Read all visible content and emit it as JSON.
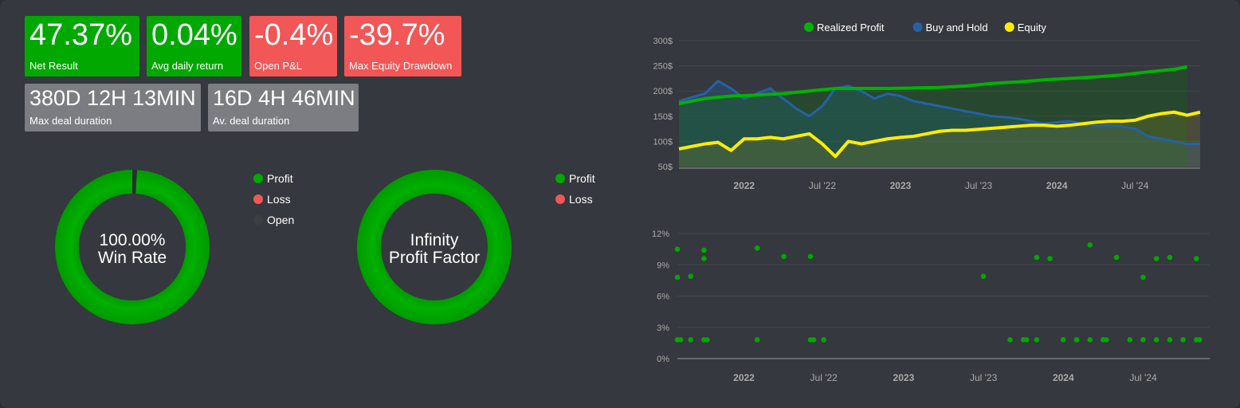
{
  "metrics": {
    "net_result": {
      "value": "47.37%",
      "label": "Net Result"
    },
    "avg_daily_return": {
      "value": "0.04%",
      "label": "Avg daily return"
    },
    "open_pnl": {
      "value": "-0.4%",
      "label": "Open P&L"
    },
    "max_drawdown": {
      "value": "-39.7%",
      "label": "Max Equity Drawdown"
    },
    "max_deal_duration": {
      "value": "380D 12H 13MIN",
      "label": "Max deal duration"
    },
    "avg_deal_duration": {
      "value": "16D 4H 46MIN",
      "label": "Av. deal duration"
    }
  },
  "colors": {
    "profit": "#00a800",
    "loss": "#f25656",
    "open": "#3c3f44",
    "buy_hold": "#2461a8",
    "equity": "#ffed00",
    "realized": "#00b300"
  },
  "win_rate_donut": {
    "line1": "100.00%",
    "line2": "Win Rate",
    "profit_share": 0.99,
    "legend": [
      "Profit",
      "Loss",
      "Open"
    ]
  },
  "profit_factor_donut": {
    "line1": "Infinity",
    "line2": "Profit Factor",
    "profit_share": 1.0,
    "legend": [
      "Profit",
      "Loss"
    ]
  },
  "chart_data": [
    {
      "type": "line",
      "legend": [
        "Realized Profit",
        "Buy and Hold",
        "Equity"
      ],
      "legend_position": "top",
      "y_ticks": [
        "300$",
        "250$",
        "200$",
        "150$",
        "100$",
        "50$"
      ],
      "ylim": [
        50,
        300
      ],
      "x_ticks": [
        "2022",
        "Jul '22",
        "2023",
        "Jul '23",
        "2024",
        "Jul '24"
      ],
      "x_tick_bold": [
        true,
        false,
        true,
        false,
        true,
        false
      ],
      "x_range": [
        "2021-08",
        "2024-12"
      ],
      "series": [
        {
          "name": "Realized Profit",
          "x": [
            "2021-08",
            "2021-09",
            "2021-10",
            "2021-12",
            "2022-02",
            "2022-04",
            "2022-06",
            "2022-08",
            "2022-10",
            "2022-12",
            "2023-02",
            "2023-04",
            "2023-06",
            "2023-08",
            "2023-10",
            "2023-12",
            "2024-02",
            "2024-04",
            "2024-06",
            "2024-08",
            "2024-10",
            "2024-11"
          ],
          "values": [
            175,
            180,
            185,
            190,
            192,
            195,
            200,
            205,
            205,
            205,
            206,
            207,
            210,
            215,
            218,
            222,
            225,
            228,
            232,
            238,
            243,
            248
          ]
        },
        {
          "name": "Buy and Hold",
          "x": [
            "2021-08",
            "2021-10",
            "2021-11",
            "2021-12",
            "2022-01",
            "2022-02",
            "2022-03",
            "2022-04",
            "2022-05",
            "2022-06",
            "2022-07",
            "2022-08",
            "2022-09",
            "2022-10",
            "2022-11",
            "2022-12",
            "2023-01",
            "2023-02",
            "2023-03",
            "2023-04",
            "2023-05",
            "2023-06",
            "2023-07",
            "2023-08",
            "2023-09",
            "2023-10",
            "2023-11",
            "2023-12",
            "2024-01",
            "2024-02",
            "2024-03",
            "2024-04",
            "2024-05",
            "2024-06",
            "2024-07",
            "2024-08",
            "2024-09",
            "2024-10",
            "2024-11",
            "2024-12"
          ],
          "values": [
            180,
            195,
            220,
            205,
            185,
            195,
            205,
            185,
            165,
            150,
            170,
            205,
            210,
            200,
            185,
            195,
            190,
            180,
            175,
            170,
            165,
            160,
            155,
            150,
            148,
            145,
            140,
            135,
            138,
            140,
            135,
            130,
            132,
            130,
            125,
            110,
            105,
            100,
            95,
            95
          ]
        },
        {
          "name": "Equity",
          "x": [
            "2021-08",
            "2021-10",
            "2021-11",
            "2021-12",
            "2022-01",
            "2022-02",
            "2022-03",
            "2022-04",
            "2022-05",
            "2022-06",
            "2022-07",
            "2022-08",
            "2022-09",
            "2022-10",
            "2022-11",
            "2022-12",
            "2023-01",
            "2023-02",
            "2023-03",
            "2023-04",
            "2023-05",
            "2023-06",
            "2023-07",
            "2023-08",
            "2023-09",
            "2023-10",
            "2023-11",
            "2023-12",
            "2024-01",
            "2024-02",
            "2024-03",
            "2024-04",
            "2024-05",
            "2024-06",
            "2024-07",
            "2024-08",
            "2024-09",
            "2024-10",
            "2024-11",
            "2024-12"
          ],
          "values": [
            85,
            95,
            98,
            82,
            105,
            105,
            108,
            105,
            110,
            115,
            95,
            70,
            100,
            95,
            100,
            105,
            108,
            110,
            115,
            120,
            122,
            122,
            124,
            126,
            128,
            130,
            132,
            132,
            130,
            132,
            135,
            138,
            140,
            140,
            142,
            150,
            155,
            158,
            152,
            158
          ]
        }
      ]
    },
    {
      "type": "scatter",
      "y_ticks": [
        "12%",
        "9%",
        "6%",
        "3%",
        "0%"
      ],
      "ylim": [
        0,
        12
      ],
      "x_ticks": [
        "2022",
        "Jul '22",
        "2023",
        "Jul '23",
        "2024",
        "Jul '24"
      ],
      "x_tick_bold": [
        true,
        false,
        true,
        false,
        true,
        false
      ],
      "x_range": [
        "2021-08",
        "2024-12"
      ],
      "series": [
        {
          "name": "",
          "points": [
            [
              "2021-08",
              7.8
            ],
            [
              "2021-08",
              10.5
            ],
            [
              "2021-09",
              7.9
            ],
            [
              "2021-10",
              10.4
            ],
            [
              "2021-10",
              9.6
            ],
            [
              "2022-02",
              10.6
            ],
            [
              "2022-04",
              9.8
            ],
            [
              "2022-06",
              9.8
            ],
            [
              "2023-07",
              7.9
            ],
            [
              "2023-11",
              9.7
            ],
            [
              "2023-12",
              9.6
            ],
            [
              "2024-03",
              10.9
            ],
            [
              "2024-05",
              9.7
            ],
            [
              "2024-07",
              7.8
            ],
            [
              "2024-08",
              9.6
            ],
            [
              "2024-09",
              9.7
            ],
            [
              "2024-11",
              9.6
            ],
            [
              "2021-08",
              1.8
            ],
            [
              "2021-08",
              1.8
            ],
            [
              "2021-09",
              1.8
            ],
            [
              "2021-10",
              1.8
            ],
            [
              "2021-10",
              1.8
            ],
            [
              "2022-02",
              1.8
            ],
            [
              "2022-06",
              1.8
            ],
            [
              "2022-06",
              1.8
            ],
            [
              "2022-07",
              1.8
            ],
            [
              "2023-09",
              1.8
            ],
            [
              "2023-10",
              1.8
            ],
            [
              "2023-10",
              1.8
            ],
            [
              "2023-11",
              1.8
            ],
            [
              "2024-01",
              1.8
            ],
            [
              "2024-02",
              1.8
            ],
            [
              "2024-03",
              1.8
            ],
            [
              "2024-04",
              1.8
            ],
            [
              "2024-04",
              1.8
            ],
            [
              "2024-06",
              1.8
            ],
            [
              "2024-07",
              1.8
            ],
            [
              "2024-08",
              1.8
            ],
            [
              "2024-09",
              1.8
            ],
            [
              "2024-10",
              1.8
            ],
            [
              "2024-11",
              1.8
            ],
            [
              "2024-11",
              1.8
            ]
          ]
        }
      ]
    }
  ]
}
